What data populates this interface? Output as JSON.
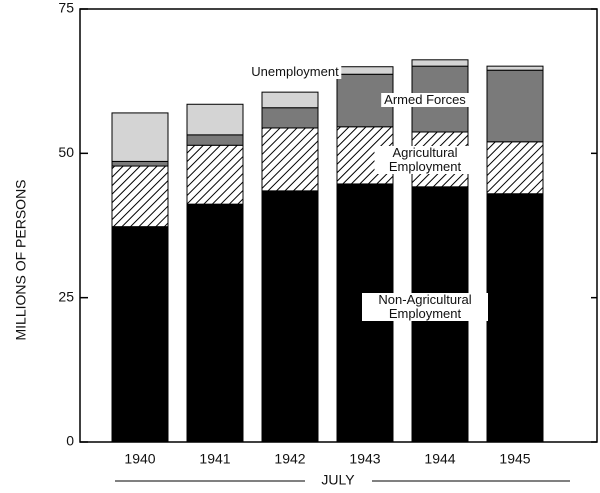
{
  "chart_data": {
    "type": "stacked_bar",
    "y_label": "MILLIONS OF PERSONS",
    "x_label": "JULY",
    "categories": [
      "1940",
      "1941",
      "1942",
      "1943",
      "1944",
      "1945"
    ],
    "series": [
      {
        "name": "Non-Agricultural Employment",
        "color": "#000000",
        "values": [
          37.3,
          41.2,
          43.5,
          44.7,
          44.2,
          43.0
        ]
      },
      {
        "name": "Agricultural Employment",
        "color": "#ffffff",
        "pattern": "hatch",
        "values": [
          10.5,
          10.2,
          10.9,
          9.9,
          9.5,
          9.0
        ]
      },
      {
        "name": "Armed Forces",
        "color": "#7a7a7a",
        "values": [
          0.8,
          1.8,
          3.5,
          9.1,
          11.4,
          12.4
        ]
      },
      {
        "name": "Unemployment",
        "color": "#d4d4d4",
        "values": [
          8.4,
          5.3,
          2.7,
          1.3,
          1.1,
          0.7
        ]
      }
    ],
    "ylim": [
      0,
      75
    ],
    "yticks": [
      0,
      25,
      50,
      75
    ]
  }
}
